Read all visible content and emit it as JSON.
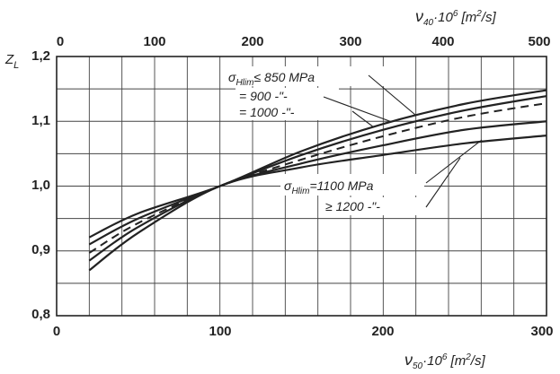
{
  "chart_data": {
    "type": "line",
    "title": "",
    "ylabel": "Z_L",
    "ylabel_text": "Z",
    "ylabel_sub": "L",
    "xlabel_bottom": "ν50·10⁶ [m²/s]",
    "xlabel_bottom_parts": {
      "nu": "ν",
      "sub": "50",
      "mul": "·10",
      "exp": "6",
      "unit_open": " [m",
      "unit_exp": "2",
      "unit_close": "/s]"
    },
    "xlabel_top": "ν40·10⁶ [m²/s]",
    "xlabel_top_parts": {
      "nu": "ν",
      "sub": "40",
      "mul": "·10",
      "exp": "6",
      "unit_open": " [m",
      "unit_exp": "2",
      "unit_close": "/s]"
    },
    "xlim_bottom": [
      0,
      300
    ],
    "xlim_top": [
      0,
      500
    ],
    "ylim": [
      0.8,
      1.2
    ],
    "xticks_bottom": [
      "0",
      "100",
      "200",
      "300"
    ],
    "xticks_top": [
      "0",
      "100",
      "200",
      "300",
      "400",
      "500"
    ],
    "yticks": [
      "0,8",
      "0,9",
      "1,0",
      "1,1",
      "1,2"
    ],
    "grid": true,
    "series": [
      {
        "name": "σHlim ≤ 850 MPa",
        "style": "solid",
        "x": [
          20,
          50,
          100,
          150,
          200,
          250,
          300
        ],
        "y": [
          0.921,
          0.958,
          1.0,
          1.054,
          1.096,
          1.127,
          1.148
        ]
      },
      {
        "name": "= 900 -\"-",
        "style": "solid",
        "x": [
          20,
          50,
          100,
          150,
          200,
          250,
          300
        ],
        "y": [
          0.91,
          0.95,
          1.0,
          1.048,
          1.087,
          1.117,
          1.139
        ]
      },
      {
        "name": "= 1000 -\"-",
        "style": "dashed",
        "x": [
          20,
          50,
          100,
          150,
          200,
          250,
          300
        ],
        "y": [
          0.897,
          0.943,
          1.0,
          1.041,
          1.077,
          1.107,
          1.128
        ]
      },
      {
        "name": "σHlim = 1100 MPa",
        "style": "solid",
        "x": [
          20,
          50,
          100,
          150,
          200,
          250,
          300
        ],
        "y": [
          0.885,
          0.937,
          1.0,
          1.035,
          1.063,
          1.087,
          1.1
        ]
      },
      {
        "name": "≥ 1200 -\"-",
        "style": "solid",
        "x": [
          20,
          50,
          100,
          150,
          200,
          250,
          300
        ],
        "y": [
          0.87,
          0.928,
          1.0,
          1.029,
          1.048,
          1.066,
          1.078
        ]
      }
    ],
    "annotations": {
      "s850": {
        "sigma": "σ",
        "sub": "Hlim",
        "rel": "≤ 850 MPa"
      },
      "s900": "= 900  -\"-",
      "s1000": "= 1000  -\"-",
      "s1100": {
        "sigma": "σ",
        "sub": "Hlim",
        "rel": "=1100 MPa"
      },
      "s1200": "≥ 1200  -\"-"
    }
  }
}
